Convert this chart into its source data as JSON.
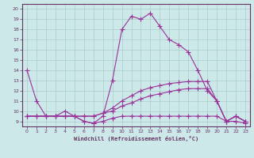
{
  "xlabel": "Windchill (Refroidissement éolien,°C)",
  "bg_color": "#cce8e8",
  "line_color": "#993399",
  "xlim": [
    -0.5,
    23.5
  ],
  "ylim": [
    8.5,
    20.5
  ],
  "xticks": [
    0,
    1,
    2,
    3,
    4,
    5,
    6,
    7,
    8,
    9,
    10,
    11,
    12,
    13,
    14,
    15,
    16,
    17,
    18,
    19,
    20,
    21,
    22,
    23
  ],
  "yticks": [
    9,
    10,
    11,
    12,
    13,
    14,
    15,
    16,
    17,
    18,
    19,
    20
  ],
  "series1_x": [
    0,
    1,
    2,
    3,
    4,
    5,
    6,
    7,
    8,
    9,
    10,
    11,
    12,
    13,
    14,
    15,
    16,
    17,
    18,
    19,
    20,
    21,
    22,
    23
  ],
  "series1_y": [
    14,
    11,
    9.5,
    9.5,
    10,
    9.5,
    9,
    8.8,
    9.5,
    13,
    18,
    19.3,
    19,
    19.6,
    18.3,
    17,
    16.5,
    15.8,
    14,
    12,
    11,
    9,
    9.5,
    9
  ],
  "series2_x": [
    0,
    1,
    2,
    3,
    4,
    5,
    6,
    7,
    8,
    9,
    10,
    11,
    12,
    13,
    14,
    15,
    16,
    17,
    18,
    19,
    20,
    21,
    22,
    23
  ],
  "series2_y": [
    9.5,
    9.5,
    9.5,
    9.5,
    9.5,
    9.5,
    9,
    8.8,
    9,
    9.3,
    9.5,
    9.5,
    9.5,
    9.5,
    9.5,
    9.5,
    9.5,
    9.5,
    9.5,
    9.5,
    9.5,
    9,
    9,
    8.8
  ],
  "series3_x": [
    0,
    1,
    2,
    3,
    4,
    5,
    6,
    7,
    8,
    9,
    10,
    11,
    12,
    13,
    14,
    15,
    16,
    17,
    18,
    19,
    20,
    21,
    22,
    23
  ],
  "series3_y": [
    9.5,
    9.5,
    9.5,
    9.5,
    9.5,
    9.5,
    9.5,
    9.5,
    9.8,
    10,
    10.5,
    10.8,
    11.2,
    11.5,
    11.7,
    11.9,
    12.1,
    12.2,
    12.2,
    12.2,
    11,
    9,
    9.5,
    9
  ],
  "series4_x": [
    0,
    1,
    2,
    3,
    4,
    5,
    6,
    7,
    8,
    9,
    10,
    11,
    12,
    13,
    14,
    15,
    16,
    17,
    18,
    19,
    20,
    21,
    22,
    23
  ],
  "series4_y": [
    9.5,
    9.5,
    9.5,
    9.5,
    9.5,
    9.5,
    9.5,
    9.5,
    9.8,
    10.3,
    11,
    11.5,
    12,
    12.3,
    12.5,
    12.7,
    12.8,
    12.9,
    12.9,
    12.9,
    11,
    9,
    9.5,
    9
  ]
}
